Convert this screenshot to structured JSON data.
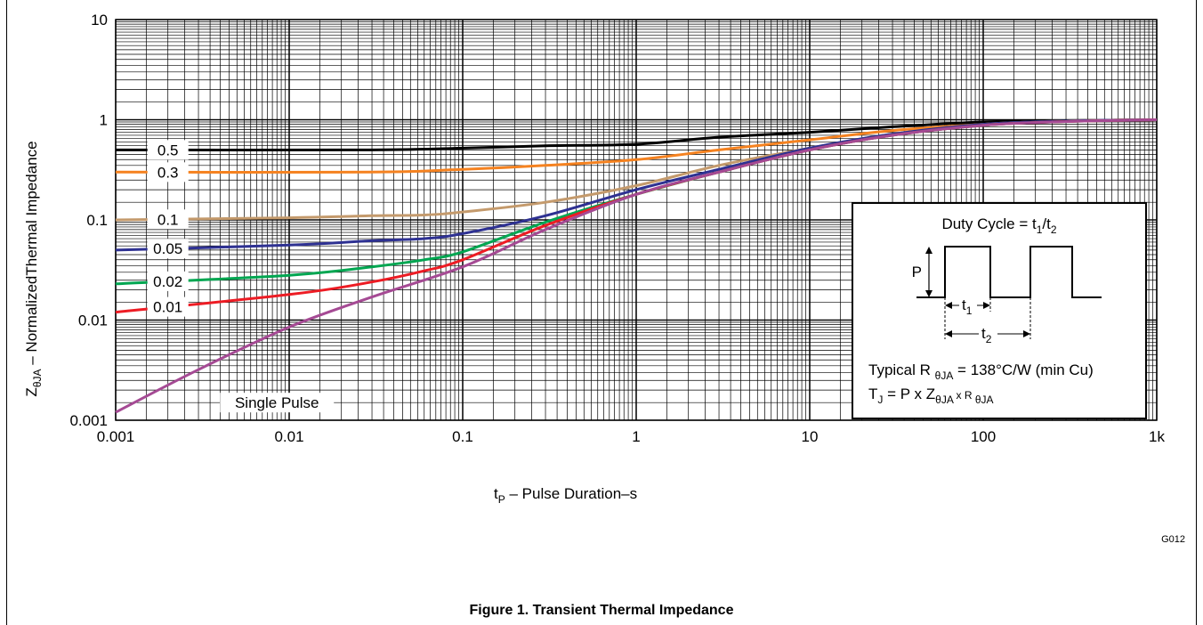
{
  "figure": {
    "caption": "Figure 1. Transient Thermal Impedance",
    "code": "G012"
  },
  "chart_data": {
    "type": "line",
    "title": "",
    "xlabel": {
      "main": "t",
      "sub": "P",
      "rest": " – Pulse Duration–s"
    },
    "ylabel": {
      "main": "Z",
      "sub": "θJA",
      "rest": " – NormalizedThermal Impedance"
    },
    "xscale": "log",
    "yscale": "log",
    "xlim": [
      0.001,
      1000
    ],
    "ylim": [
      0.001,
      10
    ],
    "grid": true,
    "x_ticks": [
      {
        "value": 0.001,
        "label": "0.001"
      },
      {
        "value": 0.01,
        "label": "0.01"
      },
      {
        "value": 0.1,
        "label": "0.1"
      },
      {
        "value": 1,
        "label": "1"
      },
      {
        "value": 10,
        "label": "10"
      },
      {
        "value": 100,
        "label": "100"
      },
      {
        "value": 1000,
        "label": "1k"
      }
    ],
    "y_ticks": [
      {
        "value": 0.001,
        "label": "0.001"
      },
      {
        "value": 0.01,
        "label": "0.01"
      },
      {
        "value": 0.1,
        "label": "0.1"
      },
      {
        "value": 1,
        "label": "1"
      },
      {
        "value": 10,
        "label": "10"
      }
    ],
    "series": [
      {
        "name": "0.5",
        "color": "#000000",
        "x": [
          0.001,
          0.03,
          0.1,
          0.3,
          1,
          3,
          10,
          30,
          100,
          300,
          1000
        ],
        "y": [
          0.5,
          0.5,
          0.52,
          0.55,
          0.57,
          0.67,
          0.75,
          0.85,
          0.95,
          0.98,
          1.0
        ]
      },
      {
        "name": "0.3",
        "color": "#f58220",
        "x": [
          0.001,
          0.03,
          0.1,
          0.3,
          1,
          3,
          10,
          30,
          100,
          300,
          1000
        ],
        "y": [
          0.3,
          0.3,
          0.32,
          0.35,
          0.4,
          0.5,
          0.63,
          0.78,
          0.9,
          0.97,
          1.0
        ]
      },
      {
        "name": "0.1",
        "color": "#c49a6c",
        "x": [
          0.001,
          0.01,
          0.03,
          0.06,
          0.1,
          0.3,
          1,
          3,
          10,
          30,
          100,
          300,
          1000
        ],
        "y": [
          0.1,
          0.105,
          0.11,
          0.112,
          0.12,
          0.15,
          0.22,
          0.35,
          0.52,
          0.72,
          0.9,
          0.97,
          1.0
        ]
      },
      {
        "name": "0.05",
        "color": "#2e3192",
        "x": [
          0.001,
          0.01,
          0.03,
          0.06,
          0.1,
          0.3,
          1,
          3,
          10,
          30,
          100,
          300,
          1000
        ],
        "y": [
          0.05,
          0.056,
          0.062,
          0.065,
          0.073,
          0.11,
          0.2,
          0.32,
          0.52,
          0.72,
          0.9,
          0.97,
          1.0
        ]
      },
      {
        "name": "0.02",
        "color": "#00a651",
        "x": [
          0.001,
          0.01,
          0.03,
          0.06,
          0.1,
          0.3,
          1,
          3,
          10,
          30,
          100,
          300,
          1000
        ],
        "y": [
          0.023,
          0.028,
          0.034,
          0.04,
          0.048,
          0.095,
          0.18,
          0.3,
          0.5,
          0.7,
          0.88,
          0.96,
          1.0
        ]
      },
      {
        "name": "0.01",
        "color": "#ed1c24",
        "x": [
          0.001,
          0.01,
          0.03,
          0.06,
          0.1,
          0.3,
          1,
          3,
          10,
          30,
          100,
          300,
          1000
        ],
        "y": [
          0.012,
          0.018,
          0.024,
          0.031,
          0.04,
          0.088,
          0.18,
          0.3,
          0.5,
          0.7,
          0.88,
          0.96,
          1.0
        ]
      },
      {
        "name": "Single Pulse",
        "color": "#a54a94",
        "x": [
          0.001,
          0.003,
          0.01,
          0.03,
          0.1,
          0.3,
          1,
          3,
          10,
          30,
          100,
          300,
          1000
        ],
        "y": [
          0.0012,
          0.0032,
          0.0085,
          0.017,
          0.034,
          0.08,
          0.18,
          0.3,
          0.5,
          0.7,
          0.88,
          0.96,
          1.0
        ]
      }
    ],
    "inset": {
      "duty_cycle": {
        "main": "Duty Cycle = t",
        "s1": "1",
        "mid": "/t",
        "s2": "2"
      },
      "p_label": "P",
      "t1": {
        "main": "t",
        "sub": "1"
      },
      "t2": {
        "main": "t",
        "sub": "2"
      },
      "typical": {
        "a": "Typical R ",
        "sub": "θJA",
        "b": " = 138°C/W (min Cu)"
      },
      "formula": {
        "a": "T",
        "s1": "J",
        "b": " = P x Z",
        "s2": "θJA",
        "c": " x R ",
        "s3": "θJA"
      }
    }
  }
}
